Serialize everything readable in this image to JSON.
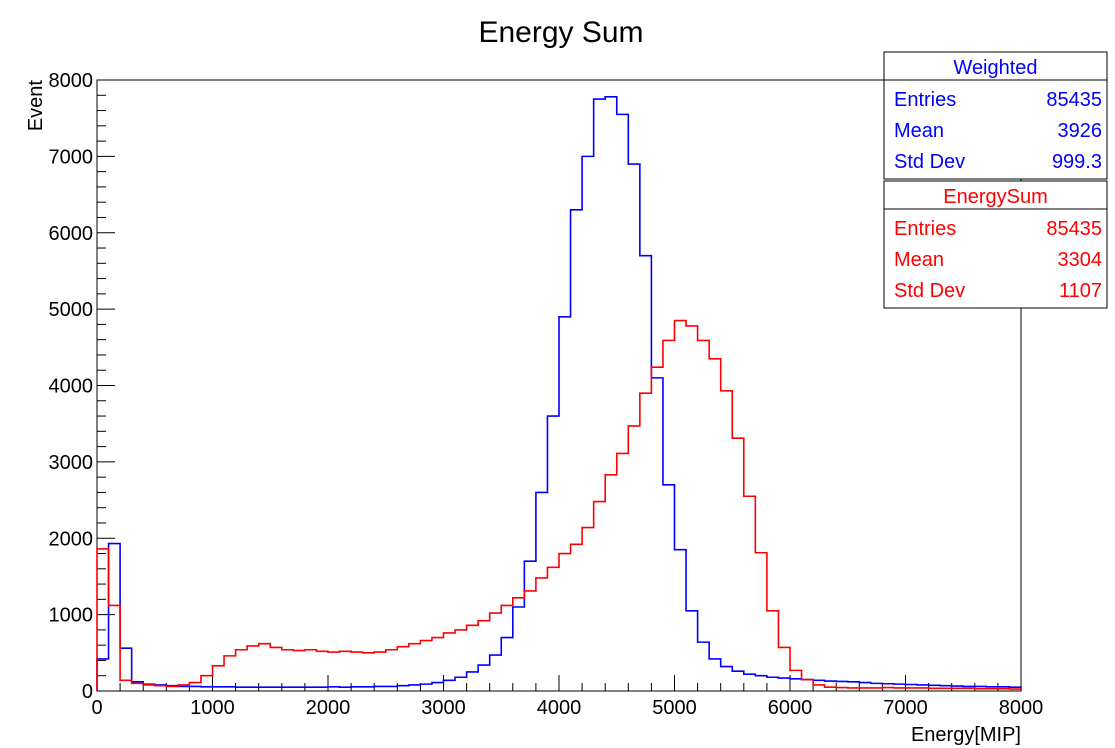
{
  "chart_data": {
    "type": "histogram",
    "title": "Energy Sum",
    "xlabel": "Energy[MIP]",
    "ylabel": "Event",
    "xlim": [
      0,
      8000
    ],
    "ylim": [
      0,
      8000
    ],
    "bin_width": 100,
    "x_ticks": [
      0,
      1000,
      2000,
      3000,
      4000,
      5000,
      6000,
      7000,
      8000
    ],
    "y_ticks": [
      0,
      1000,
      2000,
      3000,
      4000,
      5000,
      6000,
      7000,
      8000
    ],
    "grid": false,
    "legend": "top-right",
    "series": [
      {
        "name": "Weighted",
        "color": "#0000ff",
        "stats": {
          "entries": "85435",
          "mean": "3926",
          "std_dev": "999.3"
        },
        "values": [
          420,
          1930,
          560,
          120,
          90,
          80,
          70,
          60,
          60,
          55,
          55,
          55,
          50,
          50,
          50,
          50,
          50,
          50,
          50,
          50,
          55,
          50,
          55,
          55,
          60,
          60,
          70,
          80,
          90,
          110,
          140,
          180,
          250,
          340,
          470,
          700,
          1100,
          1700,
          2600,
          3600,
          4900,
          6300,
          7000,
          7750,
          7780,
          7550,
          6900,
          5700,
          4100,
          2700,
          1850,
          1050,
          640,
          420,
          320,
          260,
          220,
          200,
          180,
          170,
          160,
          150,
          140,
          130,
          125,
          120,
          110,
          100,
          95,
          90,
          85,
          80,
          75,
          70,
          65,
          60,
          60,
          55,
          55,
          50
        ]
      },
      {
        "name": "EnergySum",
        "color": "#ff0000",
        "stats": {
          "entries": "85435",
          "mean": "3304",
          "std_dev": "1107"
        },
        "values": [
          1860,
          1120,
          140,
          100,
          80,
          70,
          60,
          80,
          110,
          200,
          330,
          460,
          540,
          590,
          620,
          570,
          540,
          530,
          540,
          520,
          510,
          520,
          510,
          500,
          510,
          540,
          580,
          620,
          660,
          700,
          760,
          800,
          860,
          920,
          1020,
          1120,
          1220,
          1310,
          1480,
          1620,
          1800,
          1920,
          2140,
          2480,
          2830,
          3110,
          3470,
          3900,
          4240,
          4590,
          4850,
          4780,
          4590,
          4350,
          3930,
          3310,
          2550,
          1810,
          1050,
          570,
          270,
          150,
          80,
          50,
          45,
          40,
          40,
          40,
          45,
          40,
          40,
          40,
          35,
          35,
          35,
          35,
          30,
          30,
          30,
          25
        ]
      }
    ]
  },
  "stats_labels": {
    "entries": "Entries",
    "mean": "Mean",
    "std_dev": "Std Dev"
  }
}
